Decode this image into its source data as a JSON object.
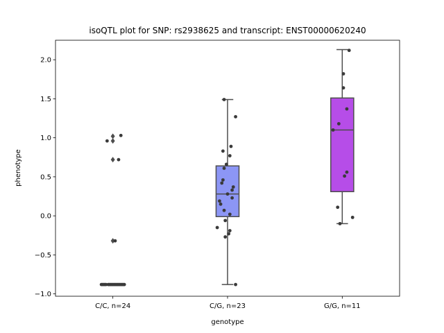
{
  "chart_data": {
    "type": "box",
    "title": "isoQTL plot for SNP: rs2938625 and transcript: ENST00000620240",
    "xlabel": "genotype",
    "ylabel": "phenotype",
    "ylim": [
      -1.03,
      2.25
    ],
    "yticks": [
      -1.0,
      -0.5,
      0.0,
      0.5,
      1.0,
      1.5,
      2.0
    ],
    "ytick_labels": [
      "−1.0",
      "−0.5",
      "0.0",
      "0.5",
      "1.0",
      "1.5",
      "2.0"
    ],
    "categories": [
      "C/C, n=24",
      "C/G, n=23",
      "G/G, n=11"
    ],
    "grid": false,
    "colors": {
      "box_cc": "#ffffff",
      "box_cg": "#8c96f5",
      "box_gg": "#b64de8",
      "box_edge": "#4d4d4d",
      "points": "#3a3a3a"
    },
    "boxes": [
      {
        "category": "C/C, n=24",
        "q1": -0.88,
        "median": -0.88,
        "q3": -0.88,
        "whisker_low": -0.88,
        "whisker_high": -0.88,
        "fliers": [
          1.02,
          0.96,
          0.72,
          -0.32
        ],
        "color": "#ffffff"
      },
      {
        "category": "C/G, n=23",
        "q1": -0.01,
        "median": 0.28,
        "q3": 0.64,
        "whisker_low": -0.88,
        "whisker_high": 1.49,
        "fliers": [],
        "color": "#8c96f5"
      },
      {
        "category": "G/G, n=11",
        "q1": 0.31,
        "median": 1.1,
        "q3": 1.51,
        "whisker_low": -0.1,
        "whisker_high": 2.13,
        "fliers": [],
        "color": "#b64de8"
      }
    ],
    "points": [
      {
        "category": 0,
        "y": 1.03,
        "dx": 0.07
      },
      {
        "category": 0,
        "y": 0.96,
        "dx": -0.05
      },
      {
        "category": 0,
        "y": 0.72,
        "dx": 0.05
      },
      {
        "category": 0,
        "y": -0.32,
        "dx": 0.02
      },
      {
        "category": 0,
        "y": -0.88,
        "dx": -0.09
      },
      {
        "category": 0,
        "y": -0.88,
        "dx": -0.07
      },
      {
        "category": 0,
        "y": -0.88,
        "dx": -0.04
      },
      {
        "category": 0,
        "y": -0.88,
        "dx": -0.02
      },
      {
        "category": 0,
        "y": -0.88,
        "dx": 0.0
      },
      {
        "category": 0,
        "y": -0.88,
        "dx": 0.02
      },
      {
        "category": 0,
        "y": -0.88,
        "dx": 0.04
      },
      {
        "category": 0,
        "y": -0.88,
        "dx": 0.06
      },
      {
        "category": 0,
        "y": -0.88,
        "dx": 0.08
      },
      {
        "category": 0,
        "y": -0.88,
        "dx": -0.08
      },
      {
        "category": 0,
        "y": -0.88,
        "dx": -0.03
      },
      {
        "category": 0,
        "y": -0.88,
        "dx": 0.01
      },
      {
        "category": 0,
        "y": -0.88,
        "dx": 0.03
      },
      {
        "category": 0,
        "y": -0.88,
        "dx": 0.05
      },
      {
        "category": 0,
        "y": -0.88,
        "dx": 0.07
      },
      {
        "category": 0,
        "y": -0.88,
        "dx": -0.06
      },
      {
        "category": 0,
        "y": -0.88,
        "dx": -0.01
      },
      {
        "category": 0,
        "y": -0.88,
        "dx": 0.09
      },
      {
        "category": 0,
        "y": -0.88,
        "dx": -0.1
      },
      {
        "category": 0,
        "y": -0.88,
        "dx": 0.1
      },
      {
        "category": 1,
        "y": 1.49,
        "dx": -0.03
      },
      {
        "category": 1,
        "y": 1.27,
        "dx": 0.07
      },
      {
        "category": 1,
        "y": 0.89,
        "dx": 0.03
      },
      {
        "category": 1,
        "y": 0.83,
        "dx": -0.04
      },
      {
        "category": 1,
        "y": 0.77,
        "dx": 0.02
      },
      {
        "category": 1,
        "y": 0.66,
        "dx": -0.01
      },
      {
        "category": 1,
        "y": 0.61,
        "dx": -0.03
      },
      {
        "category": 1,
        "y": 0.46,
        "dx": -0.04
      },
      {
        "category": 1,
        "y": 0.42,
        "dx": -0.05
      },
      {
        "category": 1,
        "y": 0.37,
        "dx": 0.05
      },
      {
        "category": 1,
        "y": 0.33,
        "dx": 0.04
      },
      {
        "category": 1,
        "y": 0.28,
        "dx": 0.0
      },
      {
        "category": 1,
        "y": 0.23,
        "dx": 0.04
      },
      {
        "category": 1,
        "y": 0.19,
        "dx": -0.07
      },
      {
        "category": 1,
        "y": 0.15,
        "dx": -0.06
      },
      {
        "category": 1,
        "y": 0.07,
        "dx": -0.03
      },
      {
        "category": 1,
        "y": 0.02,
        "dx": 0.02
      },
      {
        "category": 1,
        "y": -0.06,
        "dx": -0.02
      },
      {
        "category": 1,
        "y": -0.15,
        "dx": -0.09
      },
      {
        "category": 1,
        "y": -0.19,
        "dx": 0.02
      },
      {
        "category": 1,
        "y": -0.23,
        "dx": 0.01
      },
      {
        "category": 1,
        "y": -0.27,
        "dx": -0.02
      },
      {
        "category": 1,
        "y": -0.88,
        "dx": 0.07
      },
      {
        "category": 2,
        "y": 2.12,
        "dx": 0.06
      },
      {
        "category": 2,
        "y": 1.82,
        "dx": 0.01
      },
      {
        "category": 2,
        "y": 1.64,
        "dx": 0.01
      },
      {
        "category": 2,
        "y": 1.37,
        "dx": 0.04
      },
      {
        "category": 2,
        "y": 1.18,
        "dx": -0.03
      },
      {
        "category": 2,
        "y": 1.1,
        "dx": -0.08
      },
      {
        "category": 2,
        "y": 0.56,
        "dx": 0.04
      },
      {
        "category": 2,
        "y": 0.51,
        "dx": 0.02
      },
      {
        "category": 2,
        "y": 0.11,
        "dx": -0.04
      },
      {
        "category": 2,
        "y": -0.02,
        "dx": 0.09
      },
      {
        "category": 2,
        "y": -0.1,
        "dx": -0.02
      }
    ]
  }
}
